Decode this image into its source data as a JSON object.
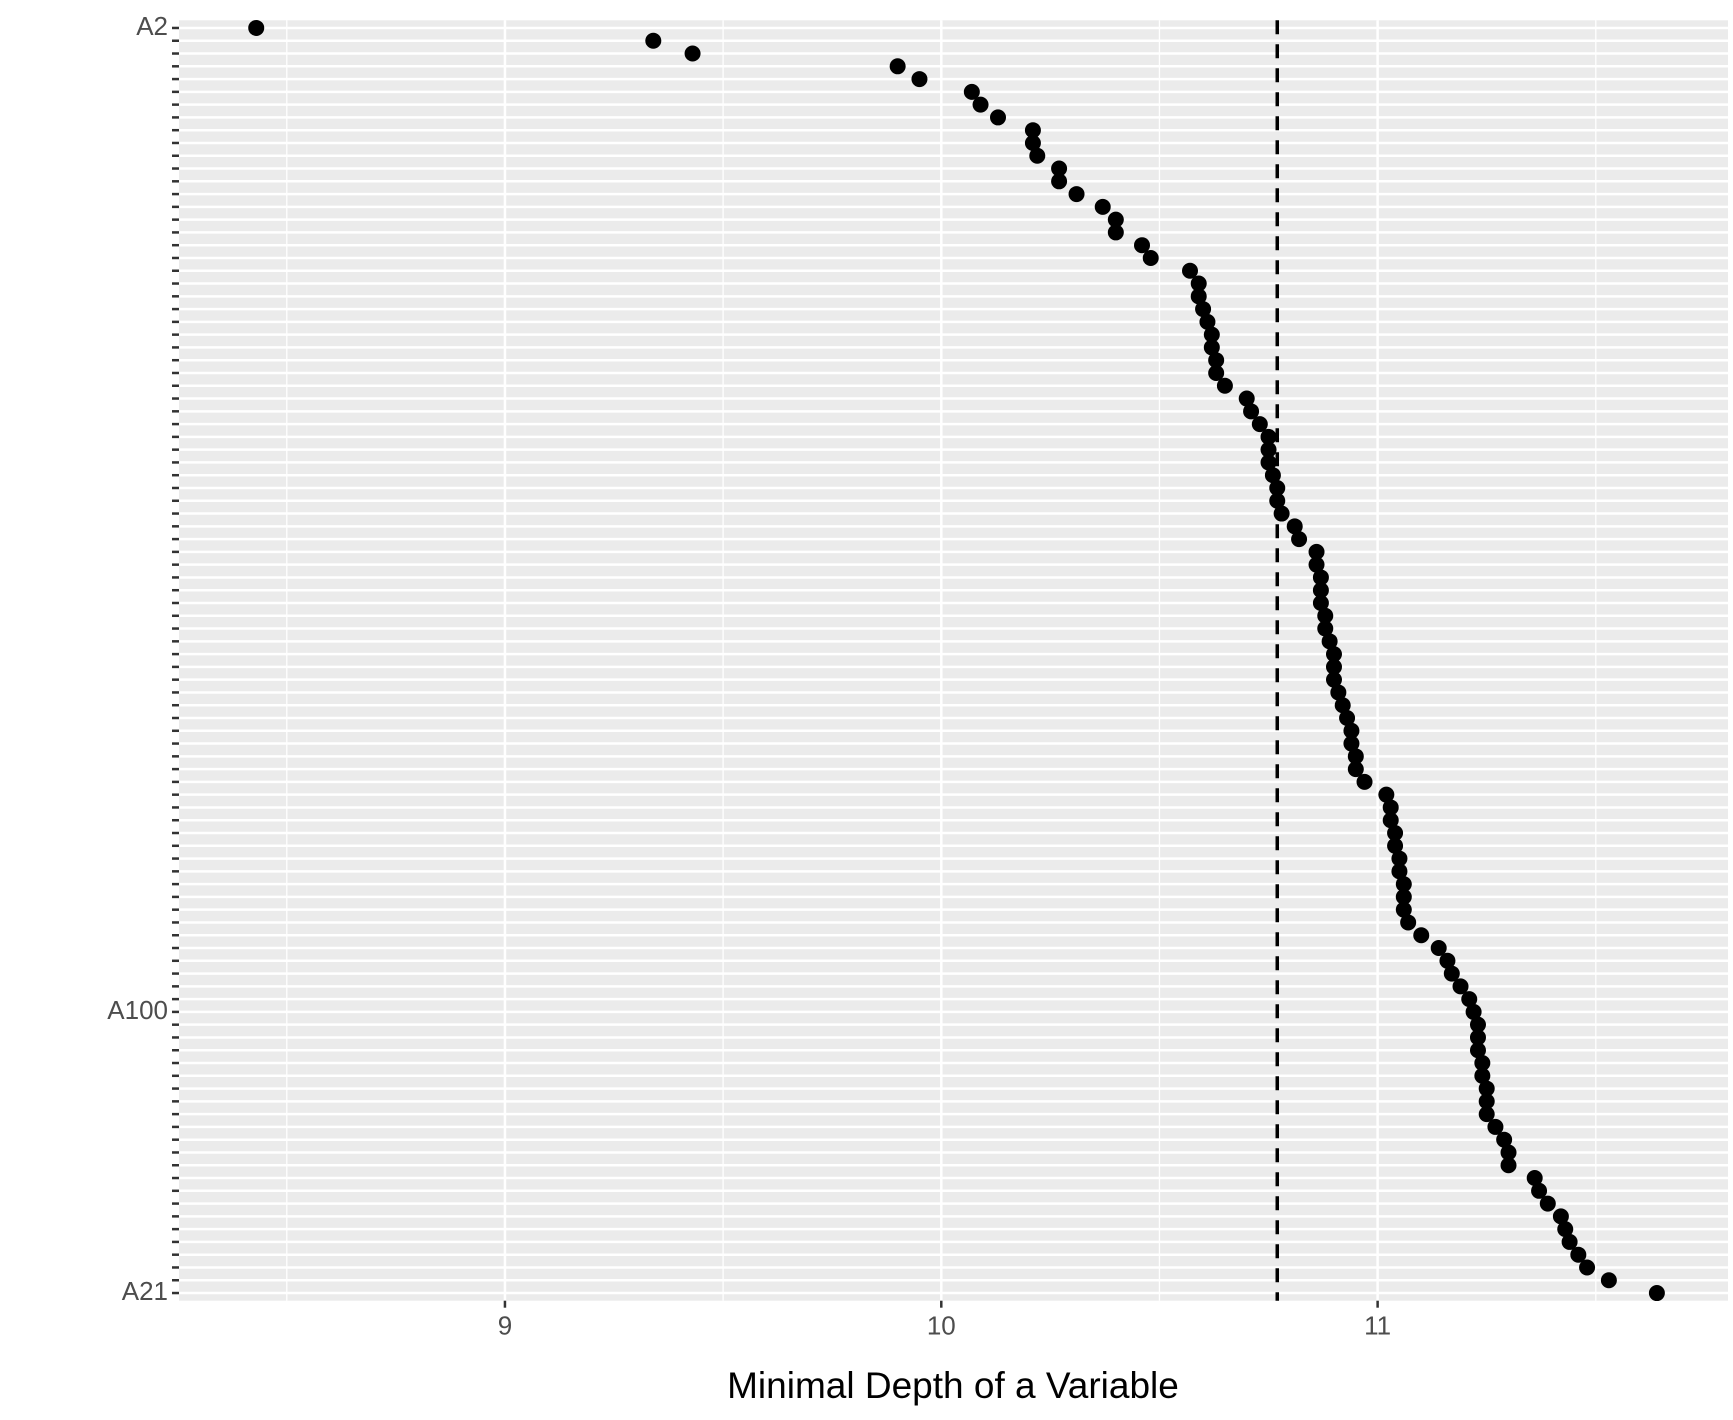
{
  "chart_data": {
    "type": "dot",
    "x_label": "Minimal Depth of a Variable",
    "categories": [
      "A2",
      null,
      null,
      null,
      null,
      null,
      null,
      null,
      null,
      null,
      null,
      null,
      null,
      null,
      null,
      null,
      null,
      null,
      null,
      null,
      null,
      null,
      null,
      null,
      null,
      null,
      null,
      null,
      null,
      null,
      null,
      null,
      null,
      null,
      null,
      null,
      null,
      null,
      null,
      null,
      null,
      null,
      null,
      null,
      null,
      null,
      null,
      null,
      null,
      null,
      null,
      null,
      null,
      null,
      null,
      null,
      null,
      null,
      null,
      null,
      null,
      null,
      null,
      null,
      null,
      null,
      null,
      null,
      null,
      null,
      null,
      null,
      null,
      null,
      null,
      null,
      null,
      "A100",
      null,
      null,
      null,
      null,
      null,
      null,
      null,
      null,
      null,
      null,
      null,
      null,
      null,
      null,
      null,
      null,
      null,
      null,
      null,
      null,
      null,
      "A21"
    ],
    "values": [
      8.43,
      9.34,
      9.43,
      9.9,
      9.95,
      10.07,
      10.09,
      10.13,
      10.21,
      10.21,
      10.22,
      10.27,
      10.27,
      10.31,
      10.37,
      10.4,
      10.4,
      10.46,
      10.48,
      10.57,
      10.59,
      10.59,
      10.6,
      10.61,
      10.62,
      10.62,
      10.63,
      10.63,
      10.65,
      10.7,
      10.71,
      10.73,
      10.75,
      10.75,
      10.75,
      10.76,
      10.77,
      10.77,
      10.78,
      10.81,
      10.82,
      10.86,
      10.86,
      10.87,
      10.87,
      10.87,
      10.88,
      10.88,
      10.89,
      10.9,
      10.9,
      10.9,
      10.91,
      10.92,
      10.93,
      10.94,
      10.94,
      10.95,
      10.95,
      10.97,
      11.02,
      11.03,
      11.03,
      11.04,
      11.04,
      11.05,
      11.05,
      11.06,
      11.06,
      11.06,
      11.07,
      11.1,
      11.14,
      11.16,
      11.17,
      11.19,
      11.21,
      11.22,
      11.23,
      11.23,
      11.23,
      11.24,
      11.24,
      11.25,
      11.25,
      11.25,
      11.27,
      11.29,
      11.3,
      11.3,
      11.36,
      11.37,
      11.39,
      11.42,
      11.43,
      11.44,
      11.46,
      11.48,
      11.53,
      11.64
    ],
    "color": "#000000",
    "vline": 10.77,
    "xlim": [
      8.253,
      11.803
    ],
    "xticks": [
      9,
      10,
      11
    ],
    "grid": true
  }
}
